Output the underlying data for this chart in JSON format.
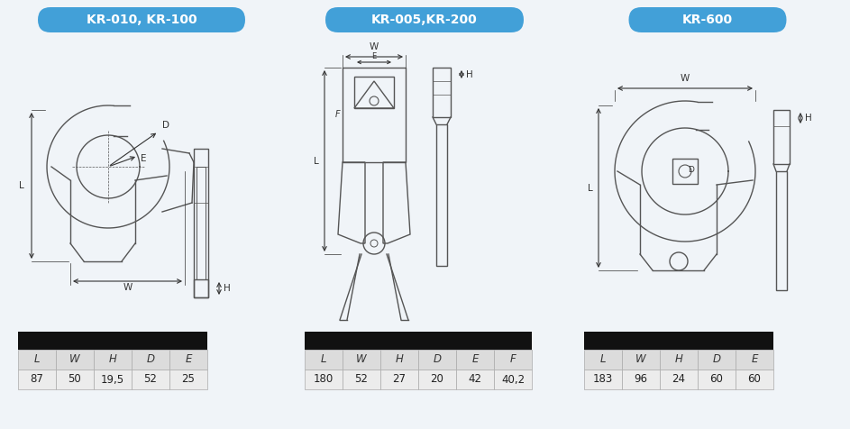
{
  "title1": "KR-010, KR-100",
  "title2": "KR-005,KR-200",
  "title3": "KR-600",
  "header_bg": "#42a0d8",
  "header_text_color": "white",
  "table1_cols": [
    "L",
    "W",
    "H",
    "D",
    "E"
  ],
  "table1_vals": [
    "87",
    "50",
    "19,5",
    "52",
    "25"
  ],
  "table2_cols": [
    "L",
    "W",
    "H",
    "D",
    "E",
    "F"
  ],
  "table2_vals": [
    "180",
    "52",
    "27",
    "20",
    "42",
    "40,2"
  ],
  "table3_cols": [
    "L",
    "W",
    "H",
    "D",
    "E"
  ],
  "table3_vals": [
    "183",
    "96",
    "24",
    "60",
    "60"
  ],
  "bg_color": "#f0f4f8",
  "draw_color": "#555555",
  "dim_color": "#333333"
}
